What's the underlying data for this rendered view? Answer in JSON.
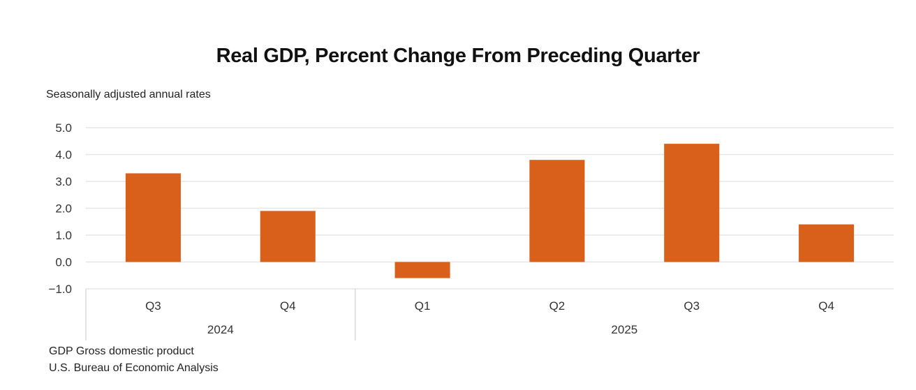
{
  "chart_data": {
    "type": "bar",
    "title": "Real GDP, Percent Change From Preceding Quarter",
    "subtitle": "Seasonally adjusted annual rates",
    "xlabel": "",
    "ylabel": "",
    "categories": [
      "Q3",
      "Q4",
      "Q1",
      "Q2",
      "Q3",
      "Q4"
    ],
    "groups": [
      {
        "label": "2024",
        "count": 2
      },
      {
        "label": "2025",
        "count": 4
      }
    ],
    "series": [
      {
        "name": "Real GDP percent change",
        "values": [
          3.3,
          1.9,
          -0.6,
          3.8,
          4.4,
          1.4
        ]
      }
    ],
    "ylim": [
      -1.0,
      5.0
    ],
    "yticks": [
      "5.0",
      "4.0",
      "3.0",
      "2.0",
      "1.0",
      "0.0",
      "−1.0"
    ],
    "ytick_values": [
      5,
      4,
      3,
      2,
      1,
      0,
      -1
    ],
    "grid": true,
    "legend": "none",
    "bar_color": "#D9601A",
    "grid_color": "#E6E6E6",
    "footnotes": [
      "GDP Gross domestic product",
      "U.S. Bureau of Economic Analysis"
    ]
  }
}
